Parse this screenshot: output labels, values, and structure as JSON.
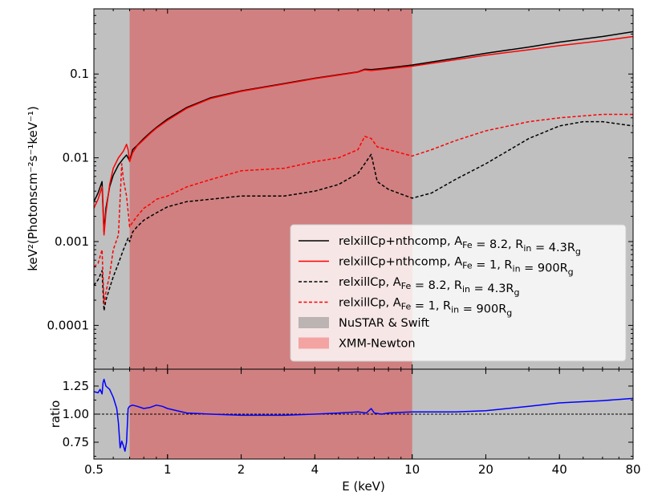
{
  "chart_data": [
    {
      "type": "line",
      "panel": "spectrum",
      "ylabel": "keV²(Photonscm⁻²s⁻¹keV⁻¹)",
      "xscale": "log",
      "yscale": "log",
      "xlim": [
        0.5,
        80
      ],
      "ylim": [
        3e-05,
        0.6
      ],
      "yticks": [
        {
          "value": 0.0001,
          "label": "0.0001"
        },
        {
          "value": 0.001,
          "label": "0.001"
        },
        {
          "value": 0.01,
          "label": "0.01"
        },
        {
          "value": 0.1,
          "label": "0.1"
        }
      ],
      "shaded_regions": [
        {
          "name": "NuSTAR & Swift",
          "x": [
            0.5,
            80
          ],
          "color": "#c0c0c0"
        },
        {
          "name": "XMM-Newton",
          "x": [
            0.7,
            10
          ],
          "color": "#d08080"
        }
      ],
      "series": [
        {
          "name": "relxillCp+nthcomp, A_Fe = 8.2, R_in = 4.3R_g",
          "color": "#000000",
          "dash": "solid",
          "x": [
            0.5,
            0.52,
            0.54,
            0.55,
            0.56,
            0.58,
            0.6,
            0.63,
            0.66,
            0.68,
            0.7,
            0.72,
            0.75,
            0.8,
            0.85,
            0.9,
            1.0,
            1.2,
            1.5,
            2.0,
            3.0,
            4.0,
            5.0,
            6.0,
            6.4,
            6.8,
            7.5,
            10,
            15,
            20,
            30,
            40,
            60,
            80
          ],
          "y": [
            0.003,
            0.0038,
            0.0052,
            0.0013,
            0.0025,
            0.0045,
            0.0062,
            0.0082,
            0.0098,
            0.0108,
            0.0092,
            0.0125,
            0.014,
            0.017,
            0.02,
            0.023,
            0.029,
            0.04,
            0.052,
            0.063,
            0.077,
            0.089,
            0.098,
            0.106,
            0.114,
            0.113,
            0.116,
            0.128,
            0.154,
            0.177,
            0.21,
            0.24,
            0.28,
            0.32
          ]
        },
        {
          "name": "relxillCp+nthcomp, A_Fe = 1, R_in = 900R_g",
          "color": "#ff0000",
          "dash": "solid",
          "x": [
            0.5,
            0.52,
            0.54,
            0.55,
            0.56,
            0.58,
            0.6,
            0.63,
            0.66,
            0.68,
            0.69,
            0.7,
            0.72,
            0.75,
            0.8,
            0.85,
            0.9,
            1.0,
            1.2,
            1.5,
            2.0,
            3.0,
            4.0,
            5.0,
            6.0,
            6.4,
            6.8,
            7.5,
            10,
            15,
            20,
            30,
            40,
            60,
            80
          ],
          "y": [
            0.0025,
            0.0032,
            0.0045,
            0.0012,
            0.0022,
            0.0048,
            0.0075,
            0.01,
            0.012,
            0.0145,
            0.0125,
            0.009,
            0.0115,
            0.0138,
            0.0165,
            0.0195,
            0.0225,
            0.028,
            0.039,
            0.051,
            0.062,
            0.076,
            0.088,
            0.097,
            0.105,
            0.112,
            0.11,
            0.113,
            0.124,
            0.148,
            0.168,
            0.195,
            0.218,
            0.25,
            0.28
          ]
        },
        {
          "name": "relxillCp, A_Fe = 8.2, R_in = 4.3R_g",
          "color": "#000000",
          "dash": "dashed",
          "x": [
            0.5,
            0.52,
            0.54,
            0.55,
            0.56,
            0.58,
            0.6,
            0.63,
            0.66,
            0.69,
            0.7,
            0.72,
            0.75,
            0.8,
            0.9,
            1.0,
            1.2,
            1.5,
            2.0,
            3.0,
            4.0,
            5.0,
            6.0,
            6.4,
            6.8,
            7.2,
            8.0,
            10,
            12,
            15,
            20,
            30,
            40,
            50,
            60,
            80
          ],
          "y": [
            0.0003,
            0.00035,
            0.00045,
            0.00015,
            0.0002,
            0.00028,
            0.00038,
            0.00055,
            0.0008,
            0.0011,
            0.001,
            0.0013,
            0.0015,
            0.0018,
            0.0022,
            0.0026,
            0.003,
            0.0032,
            0.0035,
            0.0035,
            0.004,
            0.0048,
            0.0065,
            0.0085,
            0.011,
            0.0052,
            0.0042,
            0.0033,
            0.0038,
            0.0055,
            0.0085,
            0.017,
            0.024,
            0.027,
            0.027,
            0.024
          ]
        },
        {
          "name": "relxillCp, A_Fe = 1, R_in = 900R_g",
          "color": "#ff0000",
          "dash": "dashed",
          "x": [
            0.5,
            0.52,
            0.54,
            0.55,
            0.56,
            0.58,
            0.6,
            0.63,
            0.65,
            0.66,
            0.68,
            0.7,
            0.72,
            0.75,
            0.8,
            0.85,
            0.9,
            1.0,
            1.2,
            1.5,
            2.0,
            3.0,
            4.0,
            5.0,
            6.0,
            6.4,
            6.8,
            7.2,
            8.0,
            10,
            12,
            15,
            20,
            30,
            40,
            60,
            80
          ],
          "y": [
            0.0005,
            0.00055,
            0.0008,
            0.00018,
            0.00025,
            0.0004,
            0.0008,
            0.0012,
            0.0085,
            0.0055,
            0.0035,
            0.0015,
            0.0017,
            0.002,
            0.0025,
            0.0028,
            0.0032,
            0.0035,
            0.0045,
            0.0055,
            0.007,
            0.0075,
            0.009,
            0.01,
            0.0125,
            0.018,
            0.017,
            0.0135,
            0.0125,
            0.0105,
            0.0125,
            0.016,
            0.021,
            0.027,
            0.03,
            0.033,
            0.033
          ]
        }
      ],
      "legend_entries": [
        {
          "kind": "line",
          "color": "#000000",
          "dash": "solid",
          "prefix": "relxillCp+nthcomp, A",
          "sub1": "Fe",
          "mid": " = 8.2, R",
          "sub2": "in",
          "post": " = 4.3R",
          "sub3": "g"
        },
        {
          "kind": "line",
          "color": "#ff0000",
          "dash": "solid",
          "prefix": "relxillCp+nthcomp, A",
          "sub1": "Fe",
          "mid": " = 1, R",
          "sub2": "in",
          "post": " = 900R",
          "sub3": "g"
        },
        {
          "kind": "line",
          "color": "#000000",
          "dash": "dashed",
          "prefix": "relxillCp, A",
          "sub1": "Fe",
          "mid": " = 8.2, R",
          "sub2": "in",
          "post": " = 4.3R",
          "sub3": "g"
        },
        {
          "kind": "line",
          "color": "#ff0000",
          "dash": "dashed",
          "prefix": "relxillCp, A",
          "sub1": "Fe",
          "mid": " = 1, R",
          "sub2": "in",
          "post": " = 900R",
          "sub3": "g"
        },
        {
          "kind": "patch",
          "color": "#bcb3b3",
          "label": "NuSTAR & Swift"
        },
        {
          "kind": "patch",
          "color": "#f4a3a3",
          "label": "XMM-Newton"
        }
      ],
      "legend_location": "lower-right"
    },
    {
      "type": "line",
      "panel": "ratio",
      "ylabel": "ratio",
      "xlabel": "E (keV)",
      "xscale": "log",
      "xlim": [
        0.5,
        80
      ],
      "ylim": [
        0.6,
        1.4
      ],
      "yticks": [
        {
          "value": 0.75,
          "label": "0.75"
        },
        {
          "value": 1.0,
          "label": "1.00"
        },
        {
          "value": 1.25,
          "label": "1.25"
        }
      ],
      "xticks": [
        {
          "value": 0.5,
          "label": "0.5"
        },
        {
          "value": 1,
          "label": "1"
        },
        {
          "value": 2,
          "label": "2"
        },
        {
          "value": 4,
          "label": "4"
        },
        {
          "value": 10,
          "label": "10"
        },
        {
          "value": 20,
          "label": "20"
        },
        {
          "value": 40,
          "label": "40"
        },
        {
          "value": 80,
          "label": "80"
        }
      ],
      "reference_line": {
        "y": 1.0,
        "color": "#000000",
        "dash": "dashed"
      },
      "series": [
        {
          "name": "ratio",
          "color": "#0000ff",
          "x": [
            0.5,
            0.52,
            0.53,
            0.54,
            0.545,
            0.55,
            0.56,
            0.58,
            0.6,
            0.62,
            0.63,
            0.64,
            0.65,
            0.66,
            0.67,
            0.68,
            0.69,
            0.7,
            0.72,
            0.75,
            0.8,
            0.85,
            0.9,
            0.95,
            1.0,
            1.2,
            1.5,
            2.0,
            3.0,
            4.0,
            5.0,
            6.0,
            6.5,
            6.8,
            7.0,
            7.5,
            8.0,
            10,
            15,
            20,
            30,
            40,
            60,
            80
          ],
          "y": [
            1.2,
            1.19,
            1.22,
            1.18,
            1.28,
            1.31,
            1.25,
            1.22,
            1.15,
            1.05,
            0.92,
            0.7,
            0.76,
            0.72,
            0.67,
            0.75,
            1.05,
            1.07,
            1.08,
            1.07,
            1.05,
            1.06,
            1.08,
            1.07,
            1.05,
            1.01,
            1.0,
            0.99,
            0.99,
            1.0,
            1.01,
            1.02,
            1.01,
            1.05,
            1.01,
            1.0,
            1.01,
            1.02,
            1.02,
            1.03,
            1.07,
            1.1,
            1.12,
            1.14
          ]
        }
      ]
    }
  ]
}
